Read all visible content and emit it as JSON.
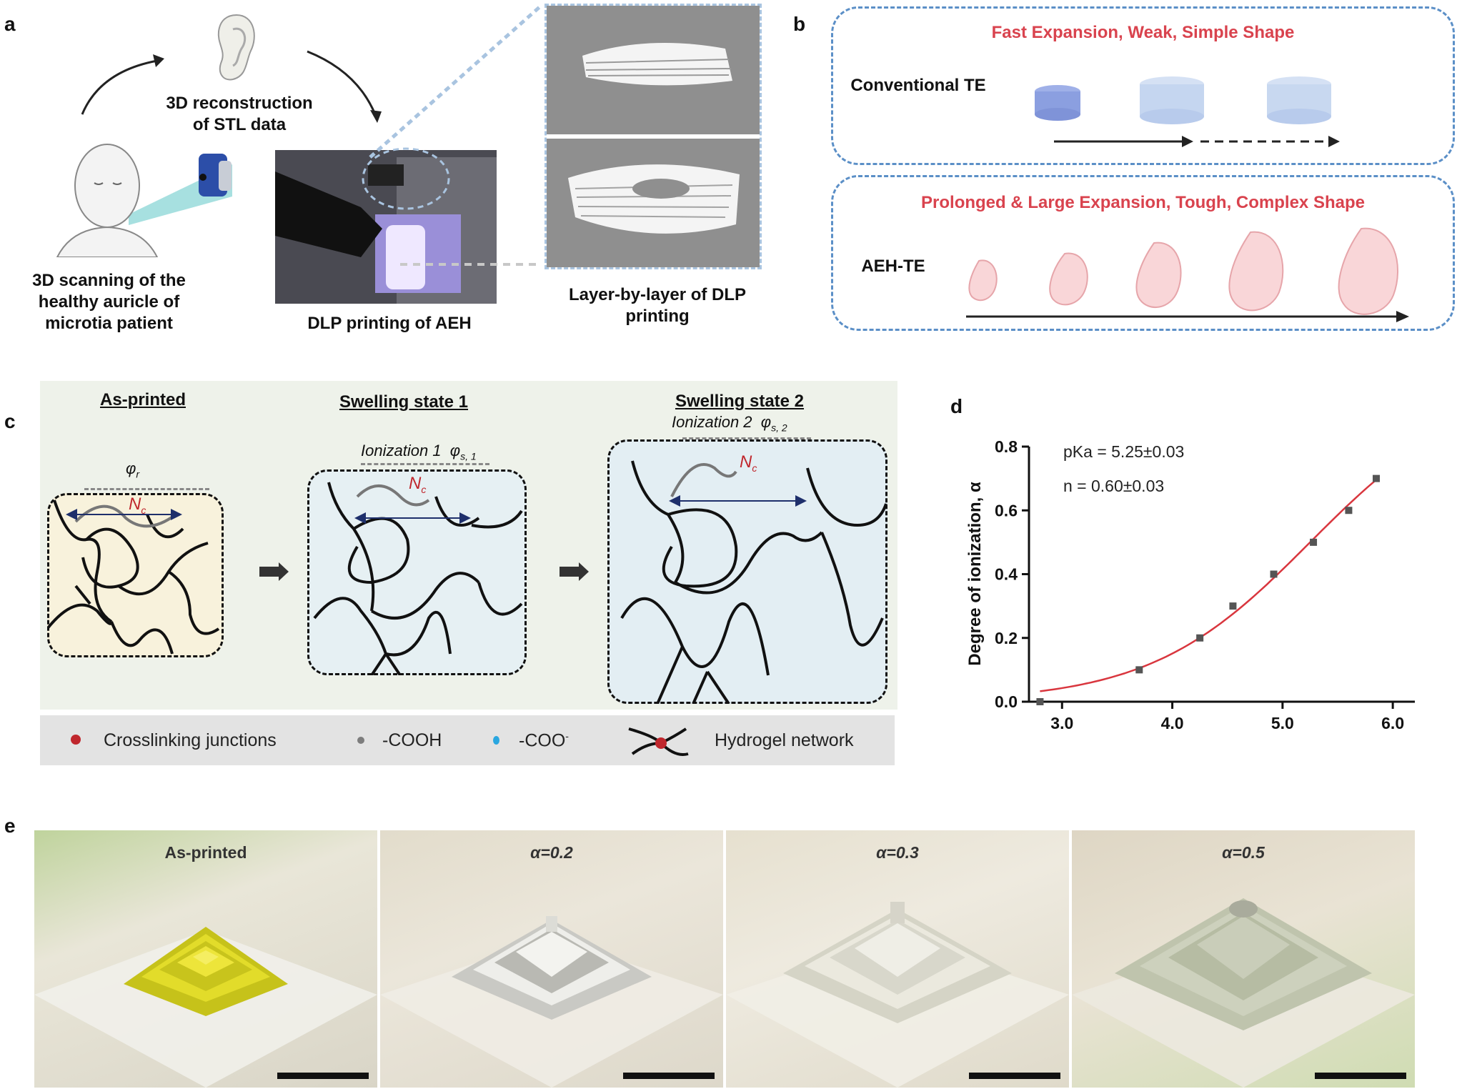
{
  "panel_labels": {
    "a": "a",
    "b": "b",
    "c": "c",
    "d": "d",
    "e": "e"
  },
  "panel_a": {
    "step1": "3D scanning of the healthy auricle of microtia patient",
    "step2": "3D reconstruction of STL data",
    "step3": "DLP printing of AEH",
    "step4": "Layer-by-layer of DLP printing"
  },
  "panel_b": {
    "top_title": "Fast Expansion, Weak, Simple Shape",
    "top_label": "Conventional TE",
    "bottom_title": "Prolonged & Large Expansion, Tough, Complex Shape",
    "bottom_label": "AEH-TE"
  },
  "panel_c": {
    "state1_title": "As-printed",
    "state2_title": "Swelling state 1",
    "state3_title": "Swelling state 2",
    "phi_r": "φ",
    "phi_r_sub": "r",
    "ion1": "Ionization 1",
    "phi_s1": "φ",
    "phi_s1_sub": "s, 1",
    "ion2": "Ionization 2",
    "phi_s2": "φ",
    "phi_s2_sub": "s, 2",
    "nc": "N",
    "nc_sub": "c",
    "legend": {
      "junction": "Crosslinking junctions",
      "cooh": "-COOH",
      "coo": "-COO",
      "coo_sup": "-",
      "network": "Hydrogel network"
    },
    "colors": {
      "junction": "#c0272d",
      "cooh": "#7d7d7d",
      "coo": "#2aa7e0"
    }
  },
  "panel_d": {
    "annot1": "pKa = 5.25±0.03",
    "annot2": "n = 0.60±0.03",
    "ylabel": "Degree of ionization, α",
    "chart_data": {
      "type": "scatter",
      "x": [
        2.8,
        3.7,
        4.25,
        4.55,
        4.92,
        5.28,
        5.6,
        5.85
      ],
      "y": [
        0.0,
        0.1,
        0.2,
        0.3,
        0.4,
        0.5,
        0.6,
        0.7
      ],
      "xlim": [
        2.7,
        6.2
      ],
      "ylim": [
        0.0,
        0.8
      ],
      "xticks": [
        "3.0",
        "4.0",
        "5.0",
        "6.0"
      ],
      "yticks": [
        "0.0",
        "0.2",
        "0.4",
        "0.6",
        "0.8"
      ],
      "fit_pka": 5.25,
      "fit_n": 0.6,
      "point_color": "#555555",
      "fit_color": "#d9363e"
    }
  },
  "panel_e": {
    "labels": [
      "As-printed",
      "α=0.2",
      "α=0.3",
      "α=0.5"
    ]
  }
}
